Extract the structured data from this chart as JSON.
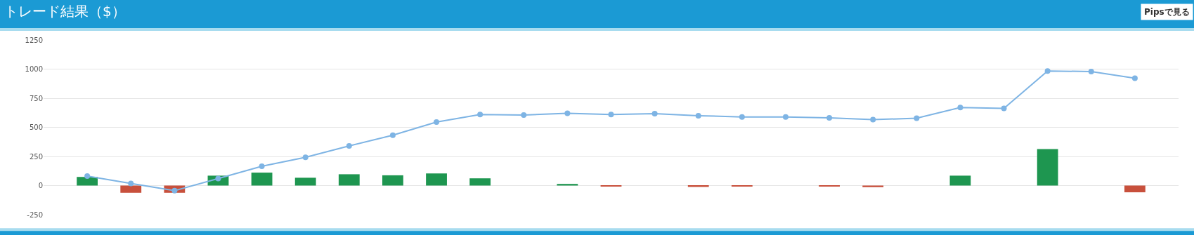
{
  "chart_data": {
    "type": "bar",
    "title": "トレード結果（$）",
    "annotations": [
      "Pipsで見る"
    ],
    "categories": [
      null,
      null,
      null,
      null,
      null,
      null,
      null,
      null,
      null,
      null,
      null,
      null,
      null,
      null,
      null,
      null,
      null,
      null,
      null,
      null,
      null,
      null,
      null,
      null,
      null
    ],
    "series": [
      {
        "colors": [
          "#1e9650",
          "#c8503c",
          "#c8503c",
          "#1e9650",
          "#1e9650",
          "#1e9650",
          "#1e9650",
          "#1e9650",
          "#1e9650",
          "#1e9650",
          "#1e9650",
          "#1e9650",
          "#c8503c",
          "#1e9650",
          "#c8503c",
          "#c8503c",
          "#1e9650",
          "#c8503c",
          "#c8503c",
          "#1e9650",
          "#1e9650",
          "#1e9650",
          "#1e9650",
          "#1e9650",
          "#c8503c"
        ],
        "values": [
          74,
          -62,
          -62,
          85,
          111,
          67,
          97,
          88,
          104,
          62,
          0,
          14,
          -5,
          0,
          -12,
          -5,
          0,
          -5,
          -14,
          0,
          85,
          0,
          314,
          0,
          -58
        ]
      },
      {
        "type": "line",
        "color": "#7eb4e4",
        "marker": "circle",
        "values": [
          81,
          18,
          -44,
          60,
          166,
          243,
          340,
          432,
          545,
          610,
          605,
          621,
          610,
          617,
          600,
          589,
          589,
          582,
          566,
          578,
          670,
          663,
          984,
          979,
          922
        ]
      }
    ],
    "ylim": [
      -250,
      1250
    ],
    "yticks": [
      -250,
      0,
      250,
      500,
      750,
      1000,
      1250
    ],
    "grid": "y"
  }
}
